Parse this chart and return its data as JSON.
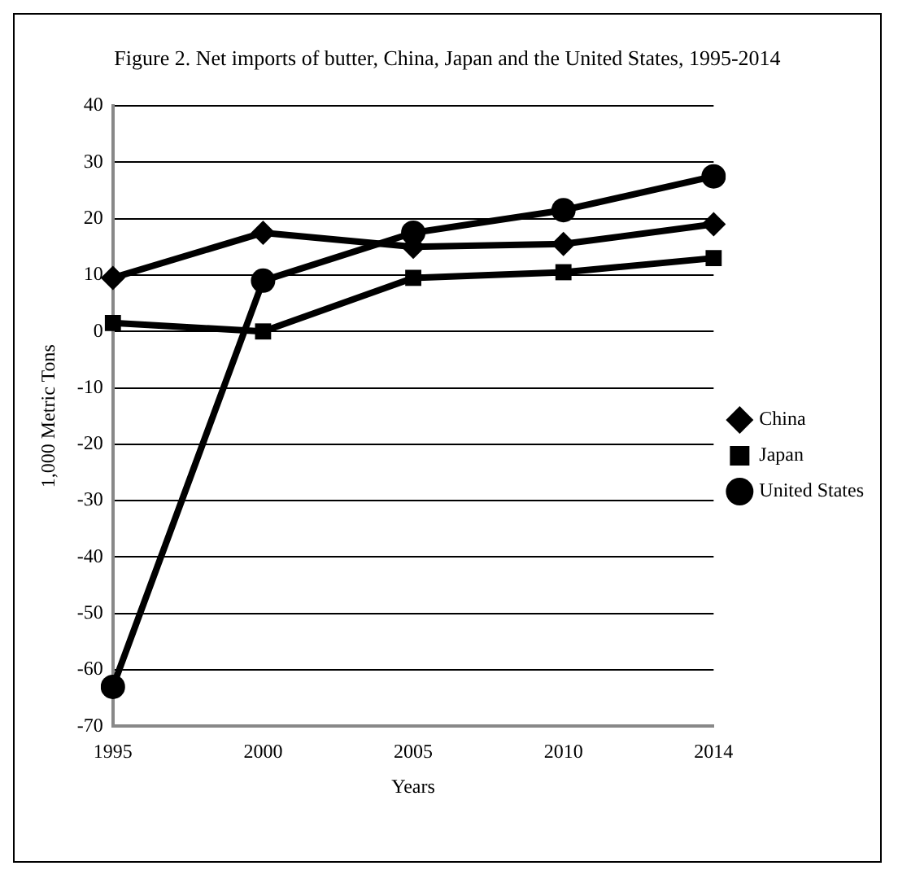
{
  "chart_data": {
    "type": "line",
    "title": "Figure 2. Net imports of  butter, China, Japan and the United States, 1995-2014",
    "xlabel": "Years",
    "ylabel": "1,000 Metric Tons",
    "categories": [
      "1995",
      "2000",
      "2005",
      "2010",
      "2014"
    ],
    "series": [
      {
        "name": "China",
        "color": "#000000",
        "marker": "diamond",
        "values": [
          9.5,
          17.5,
          15,
          15.5,
          19
        ]
      },
      {
        "name": "Japan",
        "color": "#000000",
        "marker": "square",
        "values": [
          1.5,
          0,
          9.5,
          10.5,
          13
        ]
      },
      {
        "name": "United States",
        "color": "#000000",
        "marker": "circle",
        "values": [
          -63,
          9,
          17.5,
          21.5,
          27.5
        ]
      }
    ],
    "ylim": [
      -70,
      40
    ],
    "yticks": [
      -70,
      -60,
      -50,
      -40,
      -30,
      -20,
      -10,
      0,
      10,
      20,
      30,
      40
    ],
    "grid": "y",
    "legend": "right",
    "line_style": "solid"
  }
}
